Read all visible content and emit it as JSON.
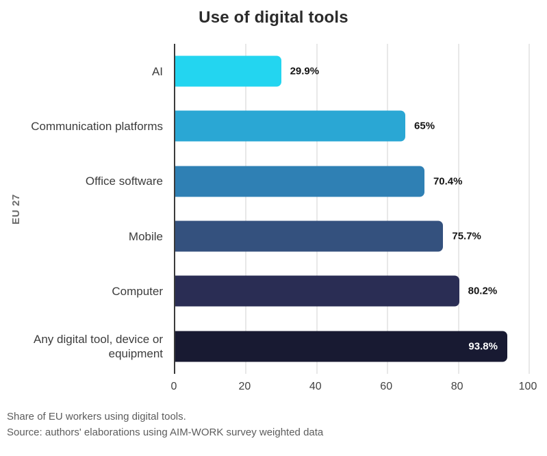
{
  "title": "Use of digital tools",
  "group_label": "EU 27",
  "chart_data": {
    "type": "bar",
    "orientation": "horizontal",
    "title": "Use of digital tools",
    "group": "EU 27",
    "categories": [
      "AI",
      "Communication platforms",
      "Office software",
      "Mobile",
      "Computer",
      "Any digital tool, device or equipment"
    ],
    "values": [
      29.9,
      65,
      70.4,
      75.7,
      80.2,
      93.8
    ],
    "value_labels": [
      "29.9%",
      "65%",
      "70.4%",
      "75.7%",
      "80.2%",
      "93.8%"
    ],
    "label_inside": [
      false,
      false,
      false,
      false,
      false,
      true
    ],
    "bar_colors": [
      "#23d5f0",
      "#2aa7d4",
      "#2f80b4",
      "#34517e",
      "#2a2d54",
      "#181a32"
    ],
    "xlim": [
      0,
      100
    ],
    "x_ticks": [
      0,
      20,
      40,
      60,
      80,
      100
    ],
    "grid": "vertical",
    "gridline_color": "#e8e8e8",
    "axis_line_color": "#3a3a3a",
    "legend": "none"
  },
  "footer": {
    "caption": "Share of EU workers using digital tools.",
    "source": "Source: authors' elaborations using AIM-WORK survey weighted data"
  }
}
